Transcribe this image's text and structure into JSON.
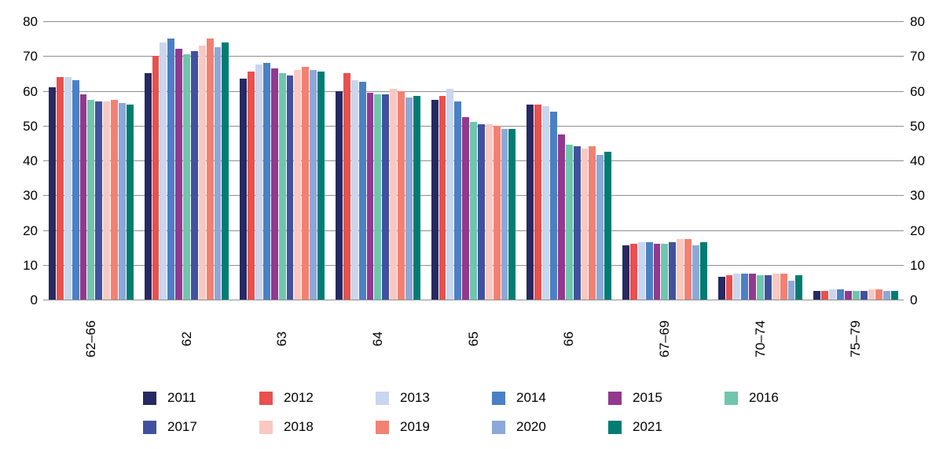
{
  "chart_data": {
    "type": "bar",
    "title": "",
    "xlabel": "",
    "ylabel": "",
    "ylim": [
      0,
      80
    ],
    "ytick_step": 10,
    "yticks": [
      "0",
      "10",
      "20",
      "30",
      "40",
      "50",
      "60",
      "70",
      "80"
    ],
    "grid": true,
    "legend_position": "bottom",
    "legend_rows": [
      6,
      5
    ],
    "categories": [
      "62–66",
      "62",
      "63",
      "64",
      "65",
      "66",
      "67–69",
      "70–74",
      "75–79"
    ],
    "series": [
      {
        "name": "2011",
        "color": "#262a62",
        "values": [
          61,
          65,
          63.5,
          60,
          57.5,
          56,
          15.5,
          6.5,
          2.5
        ]
      },
      {
        "name": "2012",
        "color": "#e9504e",
        "values": [
          64,
          70,
          65.5,
          65,
          58.5,
          56,
          16,
          7,
          2.5
        ]
      },
      {
        "name": "2013",
        "color": "#c9d6ee",
        "values": [
          64,
          74,
          67.5,
          63,
          60.5,
          55.5,
          16.5,
          7.5,
          3
        ]
      },
      {
        "name": "2014",
        "color": "#4b80c4",
        "values": [
          63,
          75,
          68,
          62.5,
          57,
          54,
          16.5,
          7.5,
          3
        ]
      },
      {
        "name": "2015",
        "color": "#93388f",
        "values": [
          59,
          72,
          66.5,
          59.5,
          52.5,
          47.5,
          16,
          7.5,
          2.5
        ]
      },
      {
        "name": "2016",
        "color": "#6fc6ad",
        "values": [
          57.5,
          70.5,
          65,
          59,
          51,
          44.5,
          16,
          7,
          2.5
        ]
      },
      {
        "name": "2017",
        "color": "#41519f",
        "values": [
          57,
          71.5,
          64.5,
          59,
          50.5,
          44,
          16.5,
          7,
          2.5
        ]
      },
      {
        "name": "2018",
        "color": "#f9c8c2",
        "values": [
          57,
          73,
          66,
          60.5,
          50.5,
          43.5,
          17.5,
          7.5,
          3
        ]
      },
      {
        "name": "2019",
        "color": "#f28172",
        "values": [
          57.5,
          75,
          67,
          60,
          50,
          44,
          17.5,
          7.5,
          3
        ]
      },
      {
        "name": "2020",
        "color": "#8da8d8",
        "values": [
          56.5,
          72.5,
          66,
          58,
          49,
          41.5,
          15.5,
          5.5,
          2.5
        ]
      },
      {
        "name": "2021",
        "color": "#007d72",
        "values": [
          56,
          74,
          65.5,
          58.5,
          49,
          42.5,
          16.5,
          7,
          2.5
        ]
      }
    ]
  }
}
